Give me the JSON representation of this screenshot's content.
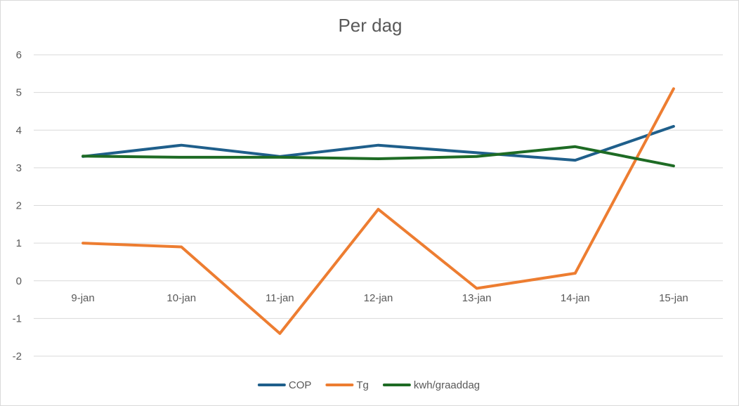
{
  "chart_data": {
    "type": "line",
    "title": "Per dag",
    "xlabel": "",
    "ylabel": "",
    "categories": [
      "9-jan",
      "10-jan",
      "11-jan",
      "12-jan",
      "13-jan",
      "14-jan",
      "15-jan"
    ],
    "ylim": [
      -2,
      6
    ],
    "yticks": [
      -2,
      -1,
      0,
      1,
      2,
      3,
      4,
      5,
      6
    ],
    "grid": true,
    "legend_position": "bottom",
    "series": [
      {
        "name": "COP",
        "color": "#1f5f8b",
        "values": [
          3.3,
          3.6,
          3.3,
          3.6,
          3.4,
          3.2,
          4.1
        ]
      },
      {
        "name": "Tg",
        "color": "#ed7d31",
        "values": [
          1.0,
          0.9,
          -1.4,
          1.9,
          -0.2,
          0.2,
          5.1
        ]
      },
      {
        "name": "kwh/graaddag",
        "color": "#1e6b24",
        "values": [
          3.31,
          3.28,
          3.28,
          3.24,
          3.3,
          3.56,
          3.05
        ]
      }
    ]
  }
}
